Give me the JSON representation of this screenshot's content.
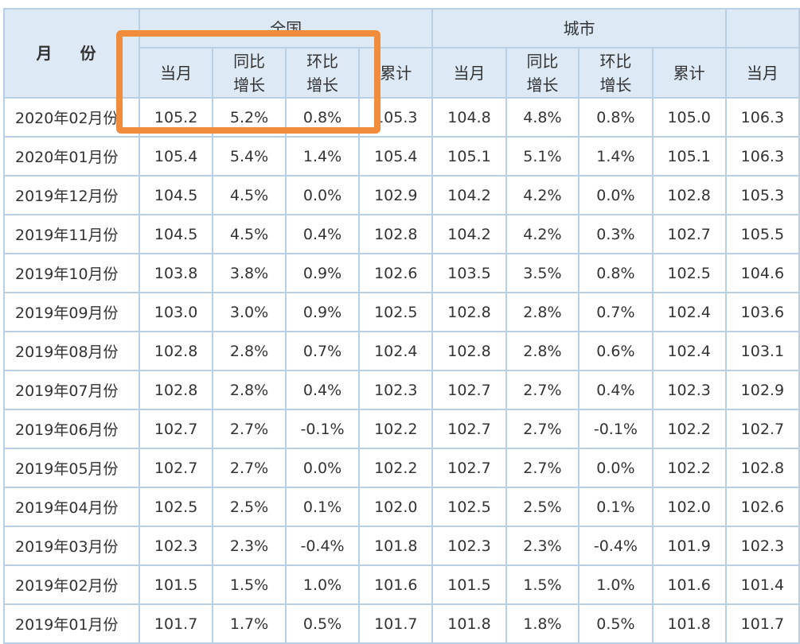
{
  "header": {
    "month_label": "月  份",
    "groups": [
      "全国",
      "城市",
      ""
    ],
    "subheaders": [
      "当月",
      "同比\n增长",
      "环比\n增长",
      "累计",
      "当月",
      "同比\n增长",
      "环比\n增长",
      "累计",
      "当月"
    ]
  },
  "colors": {
    "header_bg": "#dde9f5",
    "border": "#b9cfe3",
    "positive": "#d0202a",
    "negative": "#1f8a1f",
    "highlight": "#f08c3c"
  },
  "rows": [
    {
      "month": "2020年02月份",
      "cells": [
        "105.2",
        "5.2%",
        "0.8%",
        "105.3",
        "104.8",
        "4.8%",
        "0.8%",
        "105.0",
        "106.3"
      ]
    },
    {
      "month": "2020年01月份",
      "cells": [
        "105.4",
        "5.4%",
        "1.4%",
        "105.4",
        "105.1",
        "5.1%",
        "1.4%",
        "105.1",
        "106.3"
      ]
    },
    {
      "month": "2019年12月份",
      "cells": [
        "104.5",
        "4.5%",
        "0.0%",
        "102.9",
        "104.2",
        "4.2%",
        "0.0%",
        "102.8",
        "105.3"
      ]
    },
    {
      "month": "2019年11月份",
      "cells": [
        "104.5",
        "4.5%",
        "0.4%",
        "102.8",
        "104.2",
        "4.2%",
        "0.3%",
        "102.7",
        "105.5"
      ]
    },
    {
      "month": "2019年10月份",
      "cells": [
        "103.8",
        "3.8%",
        "0.9%",
        "102.6",
        "103.5",
        "3.5%",
        "0.8%",
        "102.5",
        "104.6"
      ]
    },
    {
      "month": "2019年09月份",
      "cells": [
        "103.0",
        "3.0%",
        "0.9%",
        "102.5",
        "102.8",
        "2.8%",
        "0.7%",
        "102.4",
        "103.6"
      ]
    },
    {
      "month": "2019年08月份",
      "cells": [
        "102.8",
        "2.8%",
        "0.7%",
        "102.4",
        "102.8",
        "2.8%",
        "0.6%",
        "102.4",
        "103.1"
      ]
    },
    {
      "month": "2019年07月份",
      "cells": [
        "102.8",
        "2.8%",
        "0.4%",
        "102.3",
        "102.7",
        "2.7%",
        "0.4%",
        "102.3",
        "102.9"
      ]
    },
    {
      "month": "2019年06月份",
      "cells": [
        "102.7",
        "2.7%",
        "-0.1%",
        "102.2",
        "102.7",
        "2.7%",
        "-0.1%",
        "102.2",
        "102.7"
      ]
    },
    {
      "month": "2019年05月份",
      "cells": [
        "102.7",
        "2.7%",
        "0.0%",
        "102.2",
        "102.7",
        "2.7%",
        "0.0%",
        "102.2",
        "102.8"
      ]
    },
    {
      "month": "2019年04月份",
      "cells": [
        "102.5",
        "2.5%",
        "0.1%",
        "102.0",
        "102.5",
        "2.5%",
        "0.1%",
        "102.0",
        "102.6"
      ]
    },
    {
      "month": "2019年03月份",
      "cells": [
        "102.3",
        "2.3%",
        "-0.4%",
        "101.8",
        "102.3",
        "2.3%",
        "-0.4%",
        "101.9",
        "102.3"
      ]
    },
    {
      "month": "2019年02月份",
      "cells": [
        "101.5",
        "1.5%",
        "1.0%",
        "101.6",
        "101.5",
        "1.5%",
        "1.0%",
        "101.6",
        "101.4"
      ]
    },
    {
      "month": "2019年01月份",
      "cells": [
        "101.7",
        "1.7%",
        "0.5%",
        "101.7",
        "101.8",
        "1.8%",
        "0.5%",
        "101.8",
        "101.7"
      ]
    }
  ]
}
